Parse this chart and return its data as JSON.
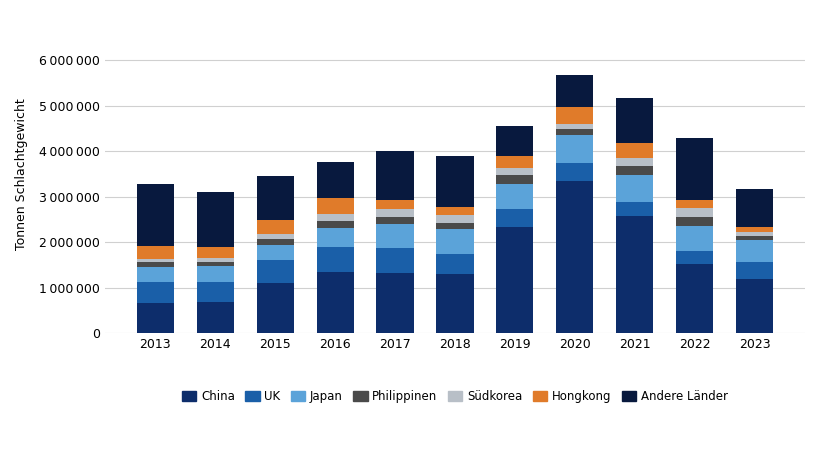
{
  "years": [
    2013,
    2014,
    2015,
    2016,
    2017,
    2018,
    2019,
    2020,
    2021,
    2022,
    2023
  ],
  "series": {
    "China": [
      650000,
      680000,
      1100000,
      1350000,
      1320000,
      1300000,
      2330000,
      3340000,
      2580000,
      1520000,
      1180000
    ],
    "UK": [
      480000,
      450000,
      500000,
      550000,
      550000,
      430000,
      400000,
      400000,
      300000,
      280000,
      380000
    ],
    "Japan": [
      330000,
      340000,
      340000,
      420000,
      540000,
      550000,
      540000,
      620000,
      600000,
      550000,
      480000
    ],
    "Philippinen": [
      95000,
      100000,
      130000,
      150000,
      140000,
      150000,
      200000,
      120000,
      200000,
      200000,
      90000
    ],
    "Südkorea": [
      80000,
      85000,
      100000,
      160000,
      180000,
      160000,
      170000,
      110000,
      180000,
      210000,
      90000
    ],
    "Hongkong": [
      270000,
      240000,
      320000,
      350000,
      190000,
      190000,
      260000,
      380000,
      330000,
      160000,
      120000
    ],
    "Andere Länder": [
      1370000,
      1210000,
      970000,
      780000,
      1080000,
      1110000,
      650000,
      720000,
      980000,
      1380000,
      820000
    ]
  },
  "colors": {
    "China": "#0d2d6b",
    "UK": "#1a5fa8",
    "Japan": "#5ba3d9",
    "Philippinen": "#4a4a4a",
    "Südkorea": "#b8bfc7",
    "Hongkong": "#e07b2a",
    "Andere Länder": "#08193e"
  },
  "ylabel": "Tonnen Schlachtgewicht",
  "ylim": [
    0,
    7000000
  ],
  "yticks": [
    0,
    1000000,
    2000000,
    3000000,
    4000000,
    5000000,
    6000000
  ],
  "background_color": "#ffffff",
  "grid_color": "#d0d0d0"
}
